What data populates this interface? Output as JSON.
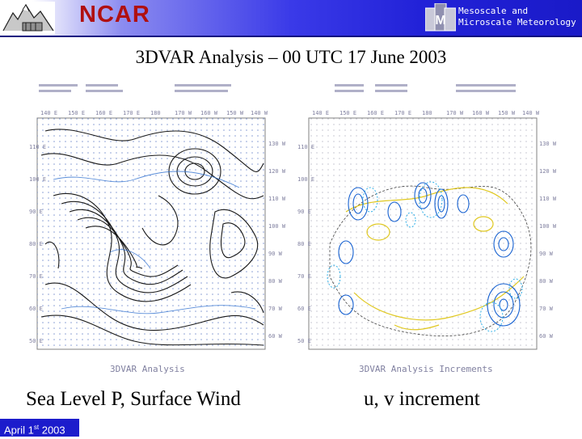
{
  "header": {
    "org_name": "NCAR",
    "division_line1": "Mesoscale and",
    "division_line2": "Microscale Meteorology"
  },
  "title": "3DVAR Analysis – 00 UTC 17 June 2003",
  "left_panel": {
    "caption": "Sea Level P, Surface Wind",
    "plot_title": "3DVAR Analysis",
    "lon_labels": [
      "140 E",
      "150 E",
      "160 E",
      "170 E",
      "180",
      "170 W",
      "160 W",
      "150 W",
      "140 W"
    ],
    "lat_labels": [
      "110 E",
      "100 E",
      "90 E",
      "80 E",
      "70 E",
      "60 E",
      "50 E"
    ],
    "right_labels": [
      "130 W",
      "120 W",
      "110 W",
      "100 W",
      "90 W",
      "80 W",
      "70 W",
      "60 W"
    ]
  },
  "right_panel": {
    "caption": "u, v increment",
    "plot_title": "3DVAR Analysis Increments",
    "lon_labels": [
      "140 E",
      "150 E",
      "160 E",
      "170 E",
      "180",
      "170 W",
      "160 W",
      "150 W",
      "140 W"
    ],
    "lat_labels": [
      "110 E",
      "100 E",
      "90 E",
      "80 E",
      "70 E",
      "60 E",
      "50 E"
    ],
    "right_labels": [
      "130 W",
      "120 W",
      "110 W",
      "100 W",
      "90 W",
      "80 W",
      "70 W",
      "60 W"
    ]
  },
  "footer": {
    "date_main": "April 1",
    "date_sup": "st",
    "date_year": "2003"
  },
  "colors": {
    "banner": "#2222d8",
    "ncar": "#b01010",
    "contour_dark": "#1a1a1a",
    "contour_blue": "#1060d0",
    "contour_yellow": "#e8d020",
    "contour_cyan": "#30b0e8"
  }
}
